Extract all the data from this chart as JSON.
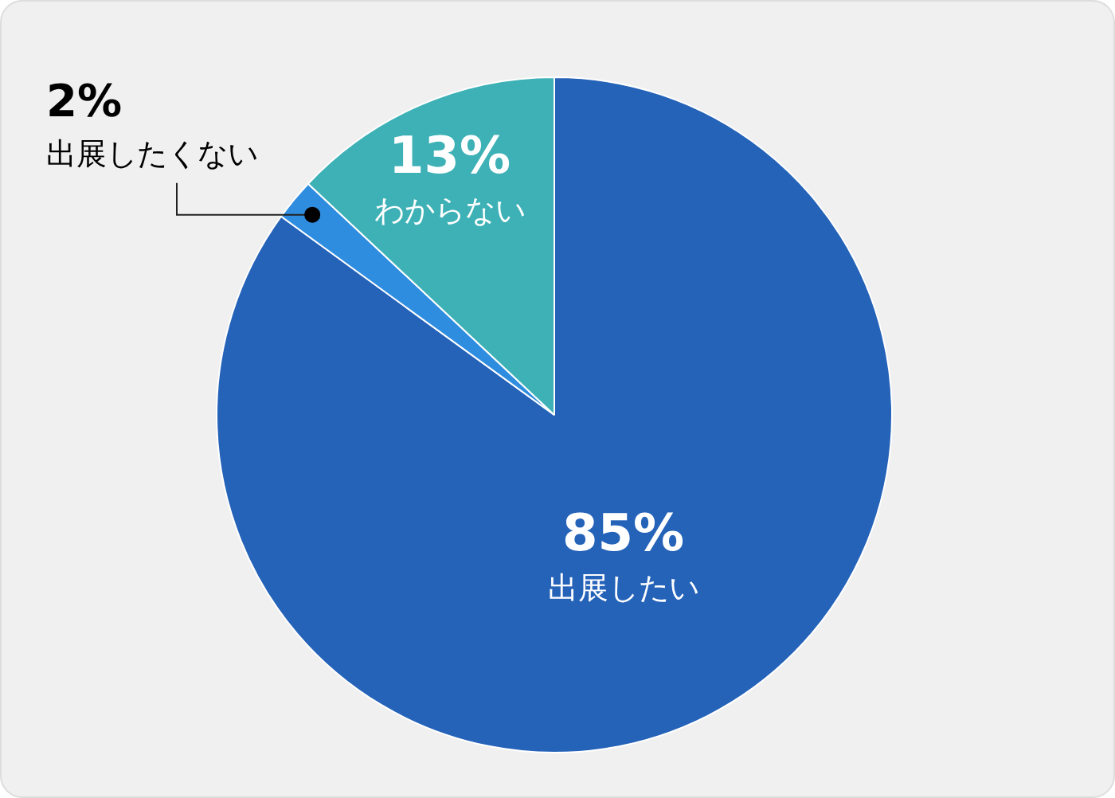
{
  "chart_data": {
    "type": "pie",
    "categories": [
      "出展したい",
      "出展したくない",
      "わからない"
    ],
    "values": [
      85,
      2,
      13
    ],
    "colors": [
      "#2563b9",
      "#2f8de0",
      "#3db1b6"
    ],
    "value_labels": [
      "85%",
      "2%",
      "13%"
    ],
    "legend": false
  }
}
